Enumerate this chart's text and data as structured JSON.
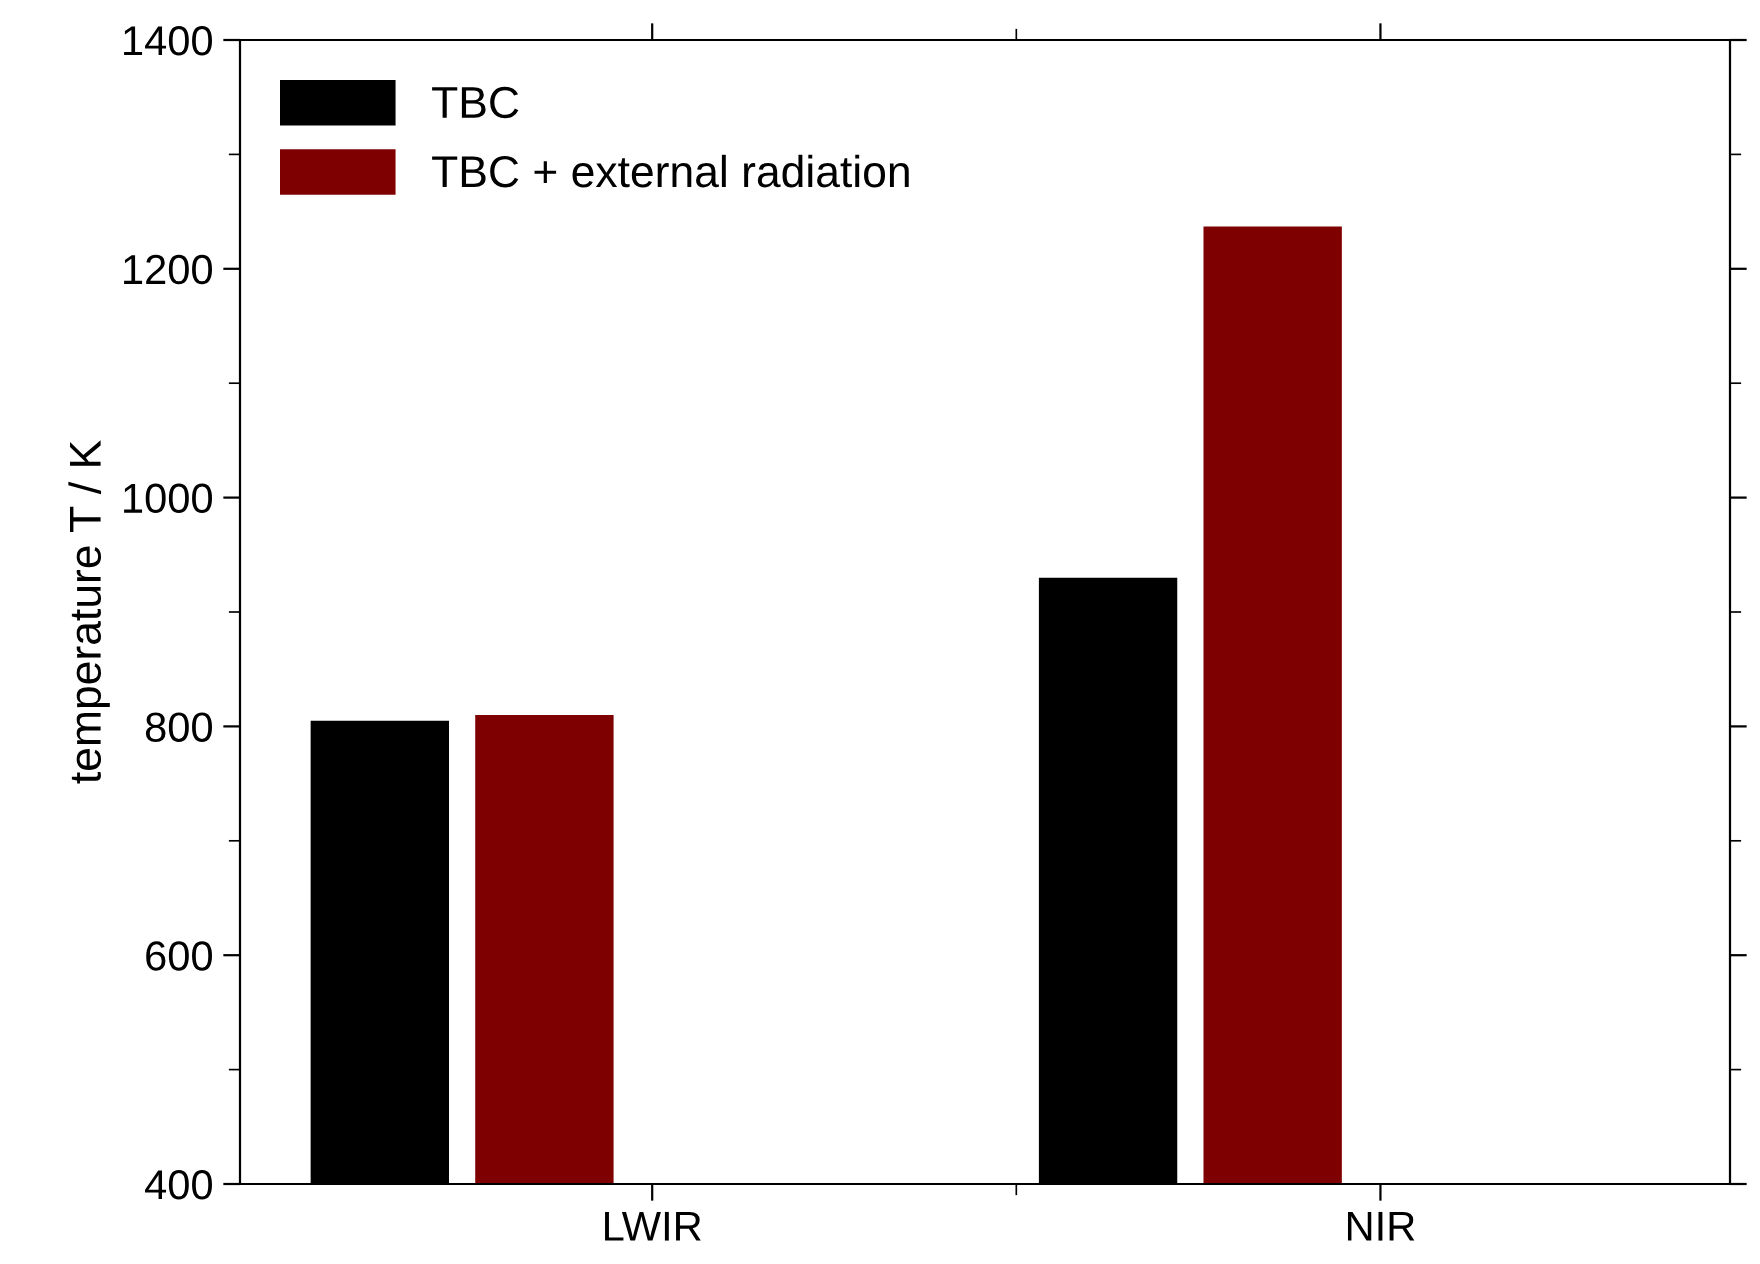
{
  "chart_data": {
    "type": "bar",
    "ylabel": "temperature T / K",
    "categories": [
      "LWIR",
      "NIR"
    ],
    "series": [
      {
        "name": "TBC",
        "color": "#000000",
        "values": [
          805,
          930
        ]
      },
      {
        "name": "TBC + external radiation",
        "color": "#7f0000",
        "values": [
          810,
          1237
        ]
      }
    ],
    "ylim": [
      400,
      1400
    ],
    "yticks": [
      400,
      600,
      800,
      1000,
      1200,
      1400
    ],
    "grid": false,
    "legend": "top left"
  }
}
